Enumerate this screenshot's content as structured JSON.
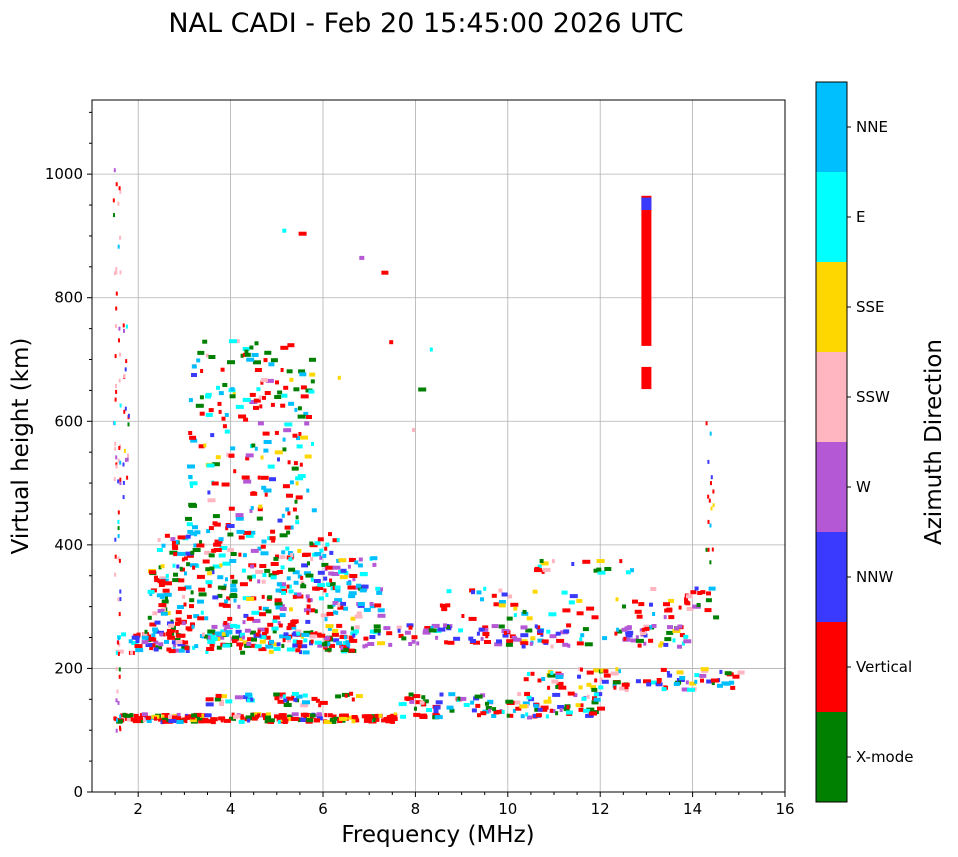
{
  "chart_data": {
    "type": "scatter",
    "title": "NAL CADI - Feb 20 15:45:00 2026 UTC",
    "xlabel": "Frequency (MHz)",
    "ylabel": "Virtual height (km)",
    "xlim": [
      1,
      16
    ],
    "ylim": [
      0,
      1120
    ],
    "xticks": [
      2,
      4,
      6,
      8,
      10,
      12,
      14,
      16
    ],
    "yticks": [
      0,
      200,
      400,
      600,
      800,
      1000
    ],
    "grid": true,
    "colorbar": {
      "title": "Azimuth Direction",
      "categories": [
        {
          "name": "X-mode",
          "color": "#008000"
        },
        {
          "name": "Vertical",
          "color": "#ff0000"
        },
        {
          "name": "NNW",
          "color": "#3a3aff"
        },
        {
          "name": "W",
          "color": "#b558d6"
        },
        {
          "name": "SSW",
          "color": "#ffb6c1"
        },
        {
          "name": "SSE",
          "color": "#ffd700"
        },
        {
          "name": "E",
          "color": "#00ffff"
        },
        {
          "name": "NNE",
          "color": "#00bfff"
        }
      ]
    },
    "clusters": [
      {
        "name": "lower-E-trace-dense",
        "f": [
          1.45,
          7.6
        ],
        "h": [
          113,
          126
        ],
        "n": 220
      },
      {
        "name": "E-trace-extension",
        "f": [
          7.6,
          12.0
        ],
        "h": [
          120,
          160
        ],
        "n": 120
      },
      {
        "name": "Es-layer-bands",
        "f": [
          10.2,
          15.0
        ],
        "h": [
          165,
          200
        ],
        "n": 90
      },
      {
        "name": "E-sporadic-150",
        "f": [
          3.4,
          6.8
        ],
        "h": [
          140,
          160
        ],
        "n": 45
      },
      {
        "name": "F-trace-low",
        "f": [
          1.5,
          6.6
        ],
        "h": [
          225,
          260
        ],
        "n": 140
      },
      {
        "name": "F-trace-250",
        "f": [
          6.4,
          14.0
        ],
        "h": [
          235,
          270
        ],
        "n": 160
      },
      {
        "name": "F-cloud",
        "f": [
          2.2,
          6.3
        ],
        "h": [
          230,
          420
        ],
        "n": 380
      },
      {
        "name": "F-cloud-upper",
        "f": [
          3.0,
          5.8
        ],
        "h": [
          420,
          730
        ],
        "n": 200
      },
      {
        "name": "mid-freq-patches",
        "f": [
          6.2,
          7.2
        ],
        "h": [
          280,
          380
        ],
        "n": 60
      },
      {
        "name": "F2-band-290",
        "f": [
          8.5,
          14.5
        ],
        "h": [
          280,
          330
        ],
        "n": 70
      },
      {
        "name": "F2-band-360",
        "f": [
          10.5,
          12.8
        ],
        "h": [
          355,
          375
        ],
        "n": 18
      },
      {
        "name": "vertical-streak-1.5MHz",
        "f": [
          1.45,
          1.6
        ],
        "h": [
          90,
          1015
        ],
        "n": 70
      },
      {
        "name": "vertical-streak-1.7MHz",
        "f": [
          1.65,
          1.78
        ],
        "h": [
          430,
          770
        ],
        "n": 20
      },
      {
        "name": "high-freq-column",
        "f": [
          14.25,
          14.45
        ],
        "h": [
          370,
          625
        ],
        "n": 16
      },
      {
        "name": "scattered-high",
        "f": [
          4.0,
          8.4
        ],
        "h": [
          580,
          925
        ],
        "n": 10
      }
    ],
    "features": [
      {
        "name": "red-vertical-bar-upper",
        "f": 13.0,
        "h_range": [
          722,
          965
        ],
        "category": "Vertical"
      },
      {
        "name": "red-vertical-bar-lower",
        "f": 13.0,
        "h_range": [
          652,
          688
        ],
        "category": "Vertical"
      },
      {
        "name": "nnw-cap",
        "f": 13.0,
        "h_range": [
          942,
          962
        ],
        "category": "NNW"
      }
    ]
  }
}
